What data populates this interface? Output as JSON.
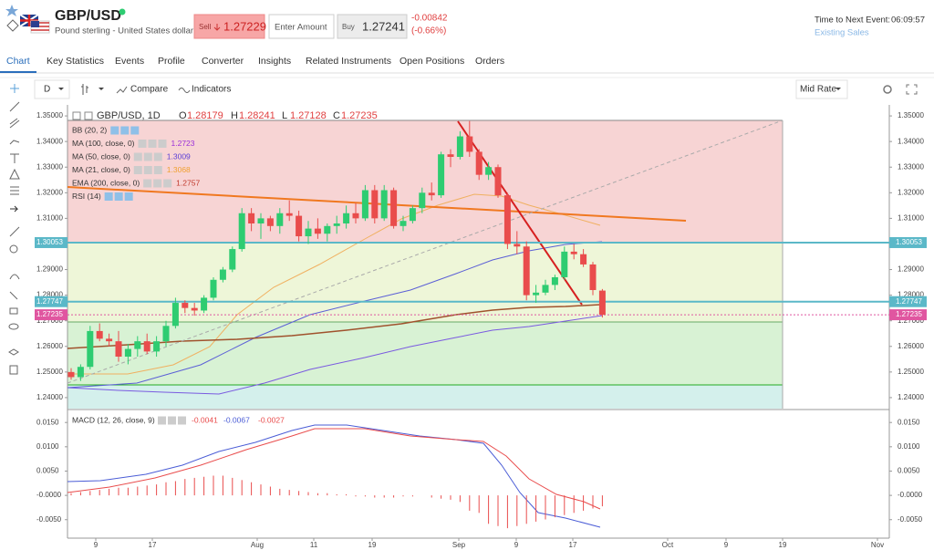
{
  "header": {
    "symbol": "GBP/USD",
    "name": "Pound sterling - United States dollar",
    "sell_label": "Sell",
    "sell_price": 1.27229,
    "amount_placeholder": "Enter Amount",
    "buy_label": "Buy",
    "buy_price": 1.27241,
    "change": -0.00842,
    "change_pct": "(-0.66%)",
    "next_event_label": "Time to Next Event:",
    "next_event_time": "06:09:57",
    "existing_sales": "Existing Sales"
  },
  "tabs": [
    "Chart",
    "Key Statistics",
    "Events",
    "Profile",
    "Converter",
    "Insights",
    "Related Instruments",
    "Open Positions",
    "Orders"
  ],
  "toolbar": {
    "interval": "D",
    "compare": "Compare",
    "indicators": "Indicators",
    "rate": "Mid Rate"
  },
  "chart": {
    "type": "candlestick",
    "legend": {
      "symbol": "GBP/USD, 1D",
      "fields": [
        {
          "label": "O",
          "value": 1.28179
        },
        {
          "label": "H",
          "value": 1.28241
        },
        {
          "label": "L",
          "value": 1.27128
        },
        {
          "label": "C",
          "value": 1.27235
        }
      ]
    },
    "indicators": [
      {
        "name": "BB (20, 2)"
      },
      {
        "name": "MA (100, close, 0)",
        "value": 1.2723,
        "color": "#9b30d9"
      },
      {
        "name": "MA (50, close, 0)",
        "value": 1.3009,
        "color": "#5b3fd6"
      },
      {
        "name": "MA (21, close, 0)",
        "value": 1.3068,
        "color": "#f0a030"
      },
      {
        "name": "EMA (200, close, 0)",
        "value": 1.2757,
        "color": "#c0392b"
      },
      {
        "name": "RSI (14)"
      }
    ],
    "up_color": "#2ecc71",
    "down_color": "#e94c4c",
    "ylim": [
      1.2357,
      1.3543
    ],
    "yticks": [
      {
        "value": 1.35,
        "label": "1.35000"
      },
      {
        "value": 1.34,
        "label": "1.34000"
      },
      {
        "value": 1.33,
        "label": "1.33000"
      },
      {
        "value": 1.32,
        "label": "1.32000"
      },
      {
        "value": 1.31,
        "label": "1.31000"
      },
      {
        "value": 1.3,
        "label": "1.30000"
      },
      {
        "value": 1.29,
        "label": "1.29000"
      },
      {
        "value": 1.28,
        "label": "1.28000"
      },
      {
        "value": 1.27,
        "label": "1.27000"
      },
      {
        "value": 1.26,
        "label": "1.26000"
      },
      {
        "value": 1.25,
        "label": "1.25000"
      },
      {
        "value": 1.24,
        "label": "1.24000"
      }
    ],
    "price_lines": [
      {
        "value": 1.30053,
        "color": "#5bb8c8"
      },
      {
        "value": 1.27747,
        "color": "#5bb8c8"
      },
      {
        "value": 1.27235,
        "color": "#e056a0"
      }
    ],
    "x_labels": [
      "9",
      "17",
      "Aug",
      "11",
      "19",
      "Sep",
      "9",
      "17",
      "Oct",
      "9",
      "19",
      "Nov"
    ],
    "candles": [
      {
        "o": 1.25,
        "h": 1.2515,
        "l": 1.247,
        "c": 1.248
      },
      {
        "o": 1.248,
        "h": 1.253,
        "l": 1.2465,
        "c": 1.252
      },
      {
        "o": 1.252,
        "h": 1.268,
        "l": 1.251,
        "c": 1.266
      },
      {
        "o": 1.266,
        "h": 1.269,
        "l": 1.262,
        "c": 1.263
      },
      {
        "o": 1.263,
        "h": 1.265,
        "l": 1.26,
        "c": 1.262
      },
      {
        "o": 1.262,
        "h": 1.266,
        "l": 1.254,
        "c": 1.256
      },
      {
        "o": 1.256,
        "h": 1.261,
        "l": 1.253,
        "c": 1.259
      },
      {
        "o": 1.259,
        "h": 1.264,
        "l": 1.256,
        "c": 1.262
      },
      {
        "o": 1.262,
        "h": 1.265,
        "l": 1.257,
        "c": 1.258
      },
      {
        "o": 1.258,
        "h": 1.264,
        "l": 1.256,
        "c": 1.262
      },
      {
        "o": 1.262,
        "h": 1.27,
        "l": 1.26,
        "c": 1.268
      },
      {
        "o": 1.268,
        "h": 1.279,
        "l": 1.267,
        "c": 1.277
      },
      {
        "o": 1.277,
        "h": 1.278,
        "l": 1.273,
        "c": 1.275
      },
      {
        "o": 1.275,
        "h": 1.277,
        "l": 1.272,
        "c": 1.274
      },
      {
        "o": 1.274,
        "h": 1.28,
        "l": 1.273,
        "c": 1.279
      },
      {
        "o": 1.279,
        "h": 1.287,
        "l": 1.278,
        "c": 1.286
      },
      {
        "o": 1.286,
        "h": 1.291,
        "l": 1.285,
        "c": 1.29
      },
      {
        "o": 1.29,
        "h": 1.299,
        "l": 1.289,
        "c": 1.298
      },
      {
        "o": 1.298,
        "h": 1.314,
        "l": 1.297,
        "c": 1.312
      },
      {
        "o": 1.312,
        "h": 1.314,
        "l": 1.305,
        "c": 1.308
      },
      {
        "o": 1.308,
        "h": 1.312,
        "l": 1.302,
        "c": 1.31
      },
      {
        "o": 1.31,
        "h": 1.311,
        "l": 1.305,
        "c": 1.307
      },
      {
        "o": 1.307,
        "h": 1.314,
        "l": 1.304,
        "c": 1.312
      },
      {
        "o": 1.312,
        "h": 1.317,
        "l": 1.309,
        "c": 1.311
      },
      {
        "o": 1.311,
        "h": 1.313,
        "l": 1.301,
        "c": 1.303
      },
      {
        "o": 1.303,
        "h": 1.309,
        "l": 1.3,
        "c": 1.306
      },
      {
        "o": 1.306,
        "h": 1.31,
        "l": 1.302,
        "c": 1.304
      },
      {
        "o": 1.304,
        "h": 1.308,
        "l": 1.301,
        "c": 1.307
      },
      {
        "o": 1.307,
        "h": 1.311,
        "l": 1.304,
        "c": 1.308
      },
      {
        "o": 1.308,
        "h": 1.315,
        "l": 1.306,
        "c": 1.312
      },
      {
        "o": 1.312,
        "h": 1.316,
        "l": 1.308,
        "c": 1.31
      },
      {
        "o": 1.31,
        "h": 1.323,
        "l": 1.309,
        "c": 1.321
      },
      {
        "o": 1.321,
        "h": 1.323,
        "l": 1.308,
        "c": 1.31
      },
      {
        "o": 1.31,
        "h": 1.323,
        "l": 1.309,
        "c": 1.321
      },
      {
        "o": 1.321,
        "h": 1.322,
        "l": 1.306,
        "c": 1.307
      },
      {
        "o": 1.307,
        "h": 1.311,
        "l": 1.305,
        "c": 1.309
      },
      {
        "o": 1.309,
        "h": 1.315,
        "l": 1.308,
        "c": 1.314
      },
      {
        "o": 1.314,
        "h": 1.322,
        "l": 1.312,
        "c": 1.32
      },
      {
        "o": 1.32,
        "h": 1.324,
        "l": 1.317,
        "c": 1.319
      },
      {
        "o": 1.319,
        "h": 1.336,
        "l": 1.318,
        "c": 1.335
      },
      {
        "o": 1.335,
        "h": 1.337,
        "l": 1.33,
        "c": 1.334
      },
      {
        "o": 1.334,
        "h": 1.344,
        "l": 1.333,
        "c": 1.342
      },
      {
        "o": 1.342,
        "h": 1.348,
        "l": 1.334,
        "c": 1.336
      },
      {
        "o": 1.336,
        "h": 1.337,
        "l": 1.325,
        "c": 1.327
      },
      {
        "o": 1.327,
        "h": 1.332,
        "l": 1.325,
        "c": 1.33
      },
      {
        "o": 1.33,
        "h": 1.331,
        "l": 1.318,
        "c": 1.319
      },
      {
        "o": 1.319,
        "h": 1.32,
        "l": 1.298,
        "c": 1.3
      },
      {
        "o": 1.3,
        "h": 1.305,
        "l": 1.296,
        "c": 1.299
      },
      {
        "o": 1.299,
        "h": 1.301,
        "l": 1.278,
        "c": 1.28
      },
      {
        "o": 1.28,
        "h": 1.284,
        "l": 1.277,
        "c": 1.281
      },
      {
        "o": 1.281,
        "h": 1.286,
        "l": 1.28,
        "c": 1.284
      },
      {
        "o": 1.284,
        "h": 1.288,
        "l": 1.282,
        "c": 1.287
      },
      {
        "o": 1.287,
        "h": 1.299,
        "l": 1.286,
        "c": 1.297
      },
      {
        "o": 1.297,
        "h": 1.3,
        "l": 1.294,
        "c": 1.296
      },
      {
        "o": 1.296,
        "h": 1.298,
        "l": 1.291,
        "c": 1.292
      },
      {
        "o": 1.292,
        "h": 1.293,
        "l": 1.28,
        "c": 1.282
      },
      {
        "o": 1.28179,
        "h": 1.28241,
        "l": 1.27128,
        "c": 1.27235
      }
    ]
  },
  "macd": {
    "name": "MACD (12, 26, close, 9)",
    "values": [
      -0.0041,
      -0.0067,
      -0.0027
    ],
    "colors": [
      "#e94c4c",
      "#4a5cd6",
      "#e94c4c"
    ],
    "ylim": [
      -0.0088,
      0.0171
    ],
    "yticks": [
      {
        "value": 0.015,
        "label": "0.0150"
      },
      {
        "value": 0.01,
        "label": "0.0100"
      },
      {
        "value": 0.005,
        "label": "0.0050"
      },
      {
        "value": 0,
        "label": "-0.0000"
      },
      {
        "value": -0.005,
        "label": "-0.0050"
      }
    ]
  }
}
